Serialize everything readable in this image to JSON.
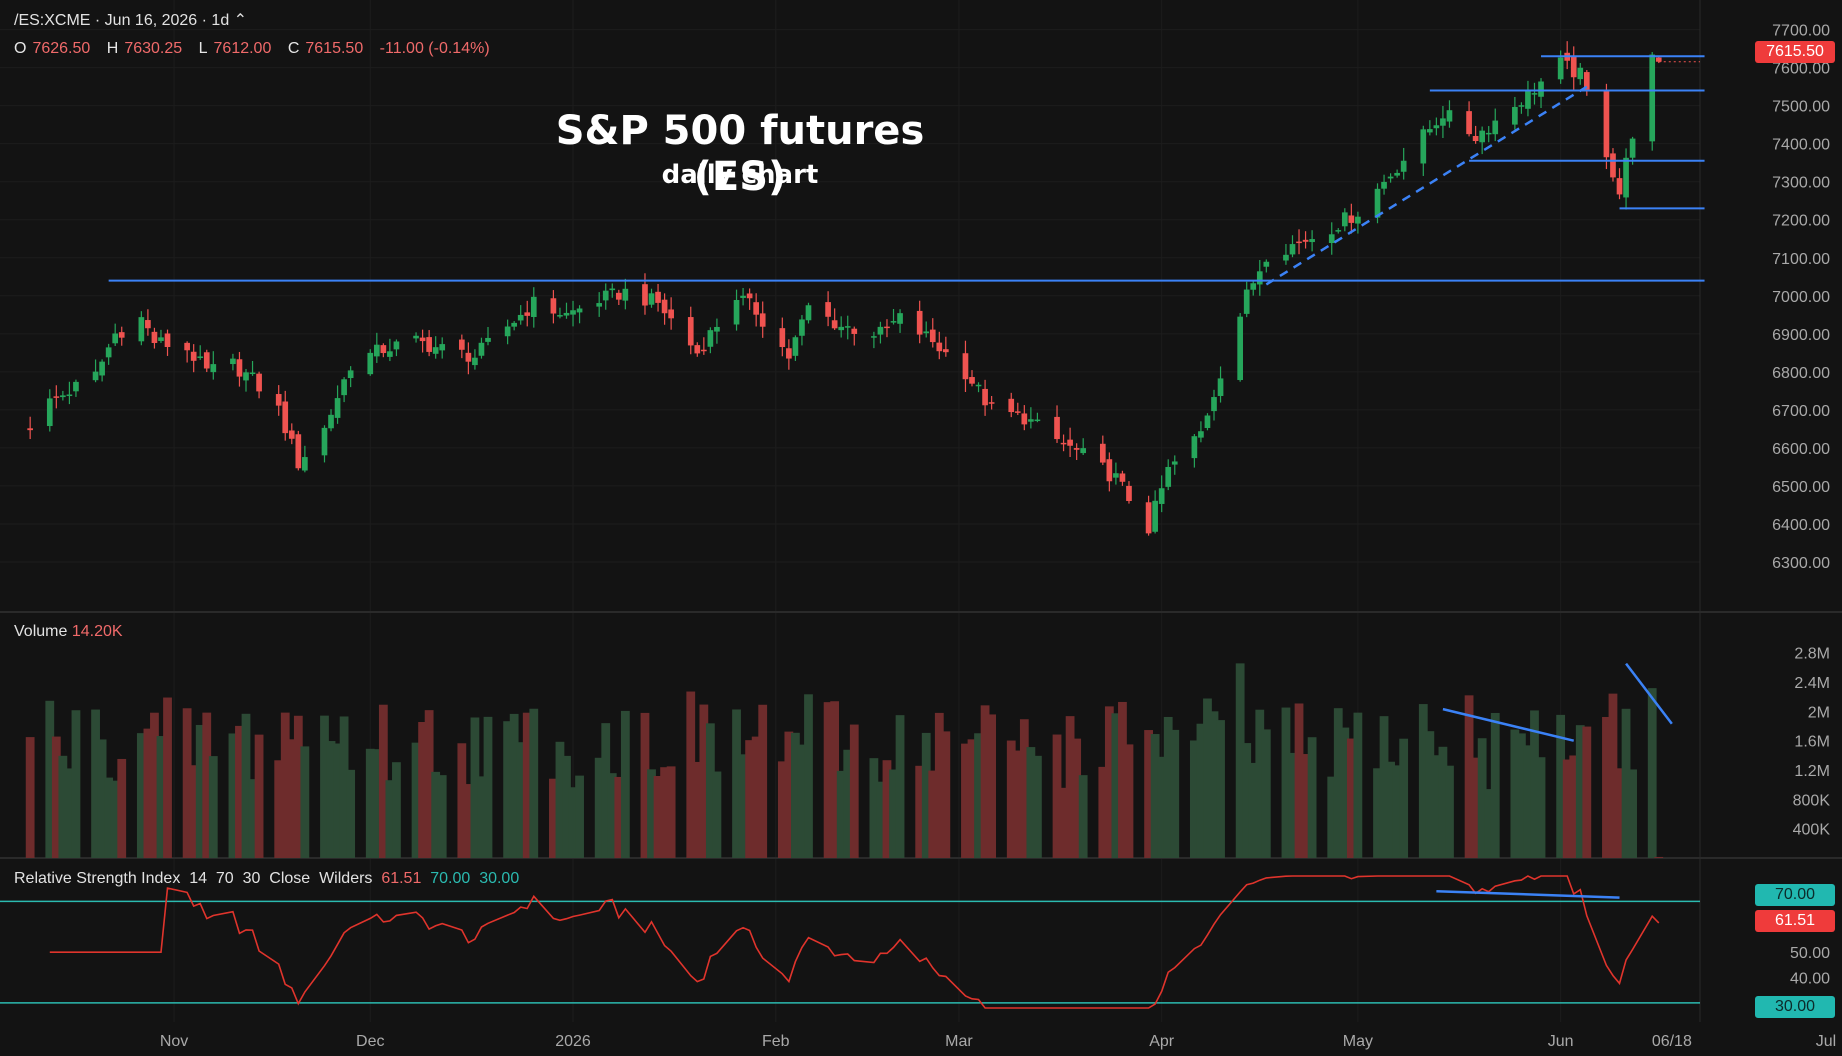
{
  "header": {
    "symbol": "/ES:XCME · Jun 16, 2026 · 1d ⌃",
    "o_label": "O",
    "o_value": "7626.50",
    "h_label": "H",
    "h_value": "7630.25",
    "l_label": "L",
    "l_value": "7612.00",
    "c_label": "C",
    "c_value": "7615.50",
    "change": "-11.00 (-0.14%)"
  },
  "annotation": {
    "title": "S&P 500 futures (ES)",
    "subtitle": "daily chart"
  },
  "volume_pane": {
    "label": "Volume",
    "value": "14.20K"
  },
  "rsi_pane": {
    "label": "Relative Strength Index",
    "length": "14",
    "upper": "70",
    "lower": "30",
    "source": "Close",
    "smoothing": "Wilders",
    "value": "61.51",
    "upper_value": "70.00",
    "lower_value": "30.00"
  },
  "last_price_badge": "7615.50",
  "colors": {
    "bg": "#131313",
    "up": "#26a65b",
    "down": "#ef5350",
    "vol_up": "#2c4a35",
    "vol_down": "#6e2c2c",
    "line": "#3b82f6",
    "rsi": "#e0342c",
    "rsi_band": "#2bbab0"
  },
  "chart_data": [
    {
      "type": "candlestick",
      "title": "S&P 500 futures (ES)",
      "ylim": [
        6200,
        7720
      ],
      "y_ticks": [
        "7700.00",
        "7600.00",
        "7500.00",
        "7400.00",
        "7300.00",
        "7200.00",
        "7100.00",
        "7000.00",
        "6900.00",
        "6800.00",
        "6700.00",
        "6600.00",
        "6500.00",
        "6400.00",
        "6300.00"
      ],
      "x_ticks": [
        "Nov",
        "Dec",
        "2026",
        "Feb",
        "Mar",
        "Apr",
        "May",
        "Jun",
        "06/18",
        "Jul"
      ],
      "close_path": [
        [
          "2025-10-10",
          6660
        ],
        [
          "2025-10-13",
          6720
        ],
        [
          "2025-10-16",
          6750
        ],
        [
          "2025-10-20",
          6790
        ],
        [
          "2025-10-23",
          6900
        ],
        [
          "2025-10-27",
          6940
        ],
        [
          "2025-10-29",
          6880
        ],
        [
          "2025-11-03",
          6860
        ],
        [
          "2025-11-06",
          6800
        ],
        [
          "2025-11-10",
          6820
        ],
        [
          "2025-11-13",
          6780
        ],
        [
          "2025-11-17",
          6700
        ],
        [
          "2025-11-20",
          6560
        ],
        [
          "2025-11-24",
          6650
        ],
        [
          "2025-11-28",
          6820
        ],
        [
          "2025-12-03",
          6860
        ],
        [
          "2025-12-08",
          6880
        ],
        [
          "2025-12-12",
          6860
        ],
        [
          "2025-12-17",
          6840
        ],
        [
          "2025-12-22",
          6920
        ],
        [
          "2025-12-26",
          6980
        ],
        [
          "2025-12-31",
          6950
        ],
        [
          "2026-01-05",
          6990
        ],
        [
          "2026-01-09",
          7010
        ],
        [
          "2026-01-14",
          6980
        ],
        [
          "2026-01-20",
          6850
        ],
        [
          "2026-01-26",
          7000
        ],
        [
          "2026-01-29",
          6960
        ],
        [
          "2026-02-03",
          6840
        ],
        [
          "2026-02-06",
          6970
        ],
        [
          "2026-02-11",
          6920
        ],
        [
          "2026-02-17",
          6900
        ],
        [
          "2026-02-20",
          6940
        ],
        [
          "2026-02-25",
          6880
        ],
        [
          "2026-03-02",
          6800
        ],
        [
          "2026-03-06",
          6700
        ],
        [
          "2026-03-11",
          6680
        ],
        [
          "2026-03-16",
          6620
        ],
        [
          "2026-03-20",
          6580
        ],
        [
          "2026-03-25",
          6520
        ],
        [
          "2026-03-30",
          6390
        ],
        [
          "2026-04-02",
          6540
        ],
        [
          "2026-04-07",
          6640
        ],
        [
          "2026-04-10",
          6800
        ],
        [
          "2026-04-14",
          7000
        ],
        [
          "2026-04-17",
          7110
        ],
        [
          "2026-04-22",
          7140
        ],
        [
          "2026-04-27",
          7180
        ],
        [
          "2026-05-01",
          7220
        ],
        [
          "2026-05-06",
          7320
        ],
        [
          "2026-05-11",
          7420
        ],
        [
          "2026-05-14",
          7480
        ],
        [
          "2026-05-19",
          7420
        ],
        [
          "2026-05-22",
          7460
        ],
        [
          "2026-05-27",
          7530
        ],
        [
          "2026-06-01",
          7610
        ],
        [
          "2026-06-04",
          7580
        ],
        [
          "2026-06-08",
          7380
        ],
        [
          "2026-06-10",
          7270
        ],
        [
          "2026-06-12",
          7430
        ],
        [
          "2026-06-15",
          7620
        ],
        [
          "2026-06-16",
          7615.5
        ]
      ],
      "horizontal_lines": [
        {
          "price": 7040,
          "from": "2025-10-22",
          "to": "2026-06-23"
        },
        {
          "price": 7630,
          "from": "2026-05-29",
          "to": "2026-06-23"
        },
        {
          "price": 7540,
          "from": "2026-05-12",
          "to": "2026-06-23"
        },
        {
          "price": 7355,
          "from": "2026-05-18",
          "to": "2026-06-23"
        },
        {
          "price": 7230,
          "from": "2026-06-10",
          "to": "2026-06-23"
        }
      ],
      "trendline": {
        "from": [
          "2026-04-17",
          7030
        ],
        "to": [
          "2026-06-05",
          7550
        ],
        "style": "dashed"
      }
    },
    {
      "type": "bar",
      "title": "Volume",
      "ylim": [
        0,
        3000000
      ],
      "y_ticks": [
        "2.8M",
        "2.4M",
        "2M",
        "1.6M",
        "1.2M",
        "800K",
        "400K"
      ],
      "last_value": "14.20K",
      "divergence_lines": [
        {
          "from": [
            "2026-05-14",
            2030000
          ],
          "to": [
            "2026-06-03",
            1600000
          ]
        },
        {
          "from": [
            "2026-06-11",
            2650000
          ],
          "to": [
            "2026-06-18",
            1830000
          ]
        }
      ]
    },
    {
      "type": "line",
      "title": "Relative Strength Index",
      "ylim": [
        28,
        80
      ],
      "y_ticks": [
        "70.00",
        "61.51",
        "50.00",
        "40.00",
        "30.00"
      ],
      "bands": [
        70,
        30
      ],
      "last_value": 61.51,
      "divergence_line": {
        "from": [
          "2026-05-13",
          74
        ],
        "to": [
          "2026-06-10",
          71.5
        ]
      }
    }
  ]
}
